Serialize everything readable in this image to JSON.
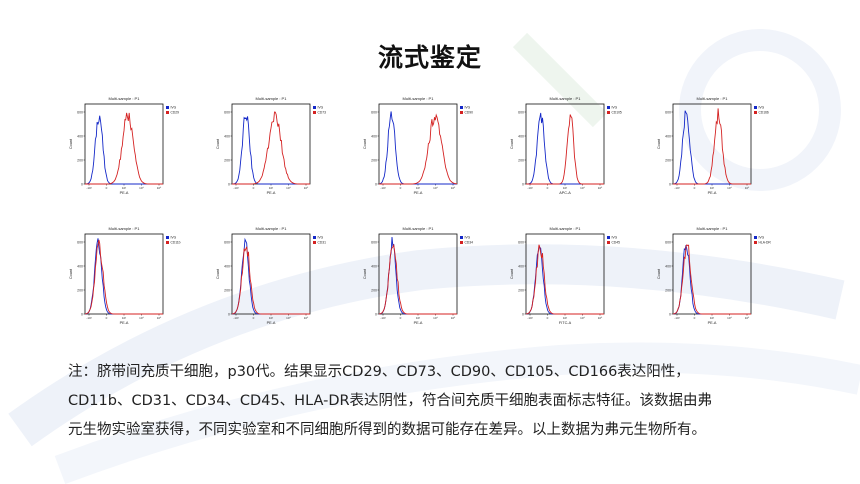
{
  "title": "流式鉴定",
  "colors": {
    "isotype": "#1428c8",
    "marker": "#d42222",
    "border": "#111111",
    "text": "#222222"
  },
  "chart_data": [
    {
      "type": "histogram",
      "title": "Multi-sample : P1",
      "ylabel": "Count",
      "xlabel": "PE-A",
      "series": [
        {
          "name": "IVG",
          "color": "#1428c8"
        },
        {
          "name": "CD29",
          "color": "#d42222"
        }
      ],
      "yticks": [
        "600",
        "400",
        "200",
        "0"
      ],
      "expression": "positive"
    },
    {
      "type": "histogram",
      "title": "Multi-sample : P1",
      "ylabel": "Count",
      "xlabel": "PE-A",
      "series": [
        {
          "name": "IVG",
          "color": "#1428c8"
        },
        {
          "name": "CD73",
          "color": "#d42222"
        }
      ],
      "yticks": [
        "600",
        "400",
        "200",
        "0"
      ],
      "expression": "positive"
    },
    {
      "type": "histogram",
      "title": "Multi-sample : P1",
      "ylabel": "Count",
      "xlabel": "PE-A",
      "series": [
        {
          "name": "IVG",
          "color": "#1428c8"
        },
        {
          "name": "CD90",
          "color": "#d42222"
        }
      ],
      "yticks": [
        "600",
        "400",
        "200",
        "0"
      ],
      "expression": "positive"
    },
    {
      "type": "histogram",
      "title": "Multi-sample : P1",
      "ylabel": "Count",
      "xlabel": "APC-A",
      "series": [
        {
          "name": "IVG",
          "color": "#1428c8"
        },
        {
          "name": "CD105",
          "color": "#d42222"
        }
      ],
      "yticks": [
        "600",
        "400",
        "200",
        "0"
      ],
      "expression": "positive"
    },
    {
      "type": "histogram",
      "title": "Multi-sample : P1",
      "ylabel": "Count",
      "xlabel": "PE-A",
      "series": [
        {
          "name": "IVG",
          "color": "#1428c8"
        },
        {
          "name": "CD166",
          "color": "#d42222"
        }
      ],
      "yticks": [
        "600",
        "400",
        "200",
        "0"
      ],
      "expression": "positive"
    },
    {
      "type": "histogram",
      "title": "Multi-sample : P1",
      "ylabel": "Count",
      "xlabel": "PE-A",
      "series": [
        {
          "name": "IVG",
          "color": "#1428c8"
        },
        {
          "name": "CD11b",
          "color": "#d42222"
        }
      ],
      "yticks": [
        "600",
        "400",
        "200",
        "0"
      ],
      "expression": "negative"
    },
    {
      "type": "histogram",
      "title": "Multi-sample : P1",
      "ylabel": "Count",
      "xlabel": "PE-A",
      "series": [
        {
          "name": "IVG",
          "color": "#1428c8"
        },
        {
          "name": "CD31",
          "color": "#d42222"
        }
      ],
      "yticks": [
        "600",
        "400",
        "200",
        "0"
      ],
      "expression": "negative"
    },
    {
      "type": "histogram",
      "title": "Multi-sample : P1",
      "ylabel": "Count",
      "xlabel": "PE-A",
      "series": [
        {
          "name": "IVG",
          "color": "#1428c8"
        },
        {
          "name": "CD34",
          "color": "#d42222"
        }
      ],
      "yticks": [
        "600",
        "400",
        "200",
        "0"
      ],
      "expression": "negative"
    },
    {
      "type": "histogram",
      "title": "Multi-sample : P1",
      "ylabel": "Count",
      "xlabel": "FITC-A",
      "series": [
        {
          "name": "IVG",
          "color": "#1428c8"
        },
        {
          "name": "CD45",
          "color": "#d42222"
        }
      ],
      "yticks": [
        "600",
        "400",
        "200",
        "0"
      ],
      "expression": "negative"
    },
    {
      "type": "histogram",
      "title": "Multi-sample : P1",
      "ylabel": "Count",
      "xlabel": "PE-A",
      "series": [
        {
          "name": "IVG",
          "color": "#1428c8"
        },
        {
          "name": "HLA-DR",
          "color": "#d42222"
        }
      ],
      "yticks": [
        "600",
        "400",
        "200",
        "0"
      ],
      "expression": "negative"
    }
  ],
  "caption": {
    "line1": "注：脐带间充质干细胞，p30代。结果显示CD29、CD73、CD90、CD105、CD166表达阳性，",
    "line2": "CD11b、CD31、CD34、CD45、HLA-DR表达阴性，符合间充质干细胞表面标志特征。该数据由弗",
    "line3": "元生物实验室获得，不同实验室和不同细胞所得到的数据可能存在差异。以上数据为弗元生物所有。"
  }
}
